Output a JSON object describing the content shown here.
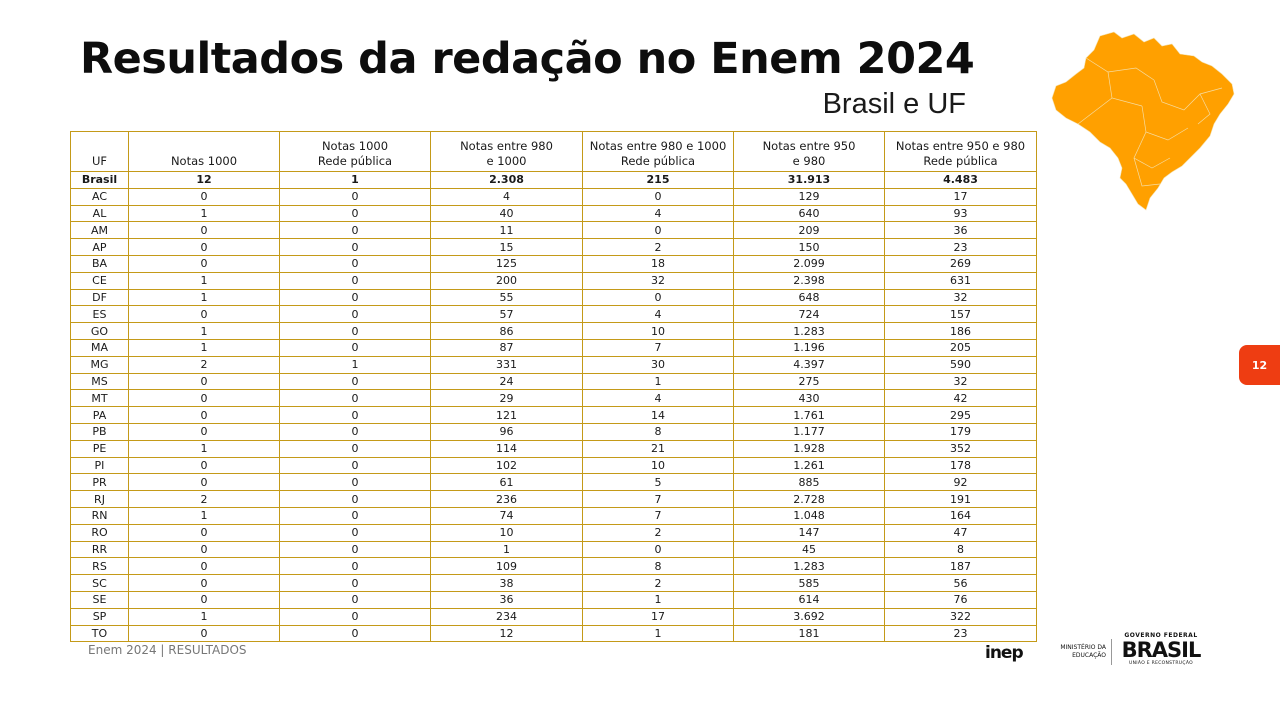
{
  "header": {
    "title": "Resultados da redação no Enem 2024",
    "subtitle": "Brasil e UF"
  },
  "colors": {
    "accent": "#FFA000",
    "table_border": "#C49A18",
    "badge": "#EE3D12"
  },
  "map_icon": "brazil-map",
  "table": {
    "columns": [
      [
        "UF"
      ],
      [
        "Notas 1000"
      ],
      [
        "Notas 1000",
        "Rede pública"
      ],
      [
        "Notas entre 980",
        "e 1000"
      ],
      [
        "Notas entre 980 e 1000",
        "Rede pública"
      ],
      [
        "Notas entre 950",
        "e 980"
      ],
      [
        "Notas entre 950 e 980",
        "Rede pública"
      ]
    ],
    "rows": [
      [
        "Brasil",
        "12",
        "1",
        "2.308",
        "215",
        "31.913",
        "4.483"
      ],
      [
        "AC",
        "0",
        "0",
        "4",
        "0",
        "129",
        "17"
      ],
      [
        "AL",
        "1",
        "0",
        "40",
        "4",
        "640",
        "93"
      ],
      [
        "AM",
        "0",
        "0",
        "11",
        "0",
        "209",
        "36"
      ],
      [
        "AP",
        "0",
        "0",
        "15",
        "2",
        "150",
        "23"
      ],
      [
        "BA",
        "0",
        "0",
        "125",
        "18",
        "2.099",
        "269"
      ],
      [
        "CE",
        "1",
        "0",
        "200",
        "32",
        "2.398",
        "631"
      ],
      [
        "DF",
        "1",
        "0",
        "55",
        "0",
        "648",
        "32"
      ],
      [
        "ES",
        "0",
        "0",
        "57",
        "4",
        "724",
        "157"
      ],
      [
        "GO",
        "1",
        "0",
        "86",
        "10",
        "1.283",
        "186"
      ],
      [
        "MA",
        "1",
        "0",
        "87",
        "7",
        "1.196",
        "205"
      ],
      [
        "MG",
        "2",
        "1",
        "331",
        "30",
        "4.397",
        "590"
      ],
      [
        "MS",
        "0",
        "0",
        "24",
        "1",
        "275",
        "32"
      ],
      [
        "MT",
        "0",
        "0",
        "29",
        "4",
        "430",
        "42"
      ],
      [
        "PA",
        "0",
        "0",
        "121",
        "14",
        "1.761",
        "295"
      ],
      [
        "PB",
        "0",
        "0",
        "96",
        "8",
        "1.177",
        "179"
      ],
      [
        "PE",
        "1",
        "0",
        "114",
        "21",
        "1.928",
        "352"
      ],
      [
        "PI",
        "0",
        "0",
        "102",
        "10",
        "1.261",
        "178"
      ],
      [
        "PR",
        "0",
        "0",
        "61",
        "5",
        "885",
        "92"
      ],
      [
        "RJ",
        "2",
        "0",
        "236",
        "7",
        "2.728",
        "191"
      ],
      [
        "RN",
        "1",
        "0",
        "74",
        "7",
        "1.048",
        "164"
      ],
      [
        "RO",
        "0",
        "0",
        "10",
        "2",
        "147",
        "47"
      ],
      [
        "RR",
        "0",
        "0",
        "1",
        "0",
        "45",
        "8"
      ],
      [
        "RS",
        "0",
        "0",
        "109",
        "8",
        "1.283",
        "187"
      ],
      [
        "SC",
        "0",
        "0",
        "38",
        "2",
        "585",
        "56"
      ],
      [
        "SE",
        "0",
        "0",
        "36",
        "1",
        "614",
        "76"
      ],
      [
        "SP",
        "1",
        "0",
        "234",
        "17",
        "3.692",
        "322"
      ],
      [
        "TO",
        "0",
        "0",
        "12",
        "1",
        "181",
        "23"
      ]
    ]
  },
  "footer": {
    "text": "Enem 2024 | RESULTADOS",
    "page_number": "12",
    "logos": {
      "inep": "inep",
      "mec_line1": "MINISTÉRIO DA",
      "mec_line2": "EDUCAÇÃO",
      "gov_top": "GOVERNO FEDERAL",
      "gov_main": "BRASIL",
      "gov_sub": "UNIÃO E RECONSTRUÇÃO"
    }
  }
}
